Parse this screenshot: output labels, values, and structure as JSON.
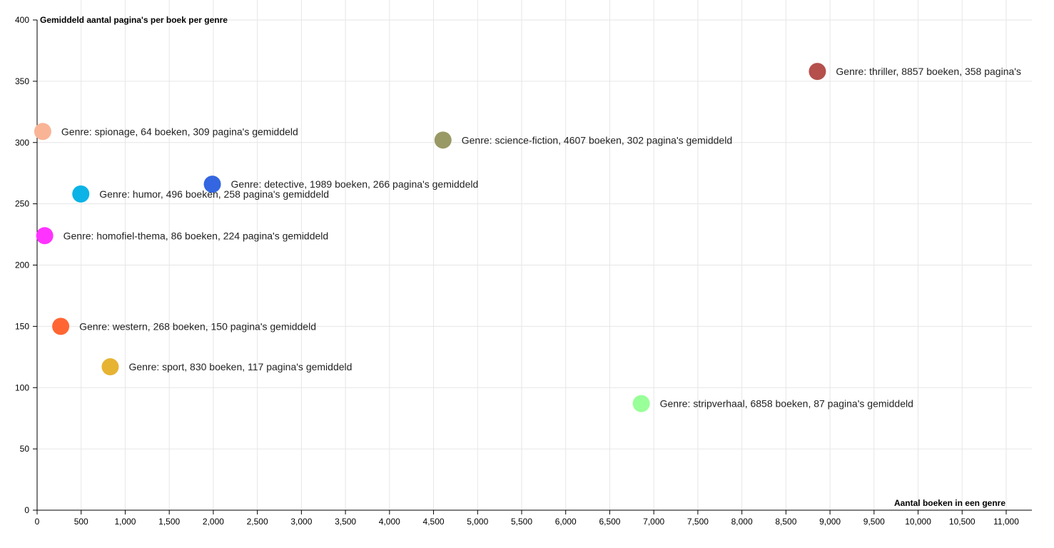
{
  "chart_data": {
    "type": "scatter",
    "xlabel": "Aantal boeken in een genre",
    "ylabel": "Gemiddeld aantal pagina's per boek per genre",
    "xlim": [
      0,
      11300
    ],
    "ylim": [
      0,
      400
    ],
    "x_ticks": [
      0,
      500,
      1000,
      1500,
      2000,
      2500,
      3000,
      3500,
      4000,
      4500,
      5000,
      5500,
      6000,
      6500,
      7000,
      7500,
      8000,
      8500,
      9000,
      9500,
      10000,
      10500,
      11000
    ],
    "x_tick_labels": [
      "0",
      "500",
      "1,000",
      "1,500",
      "2,000",
      "2,500",
      "3,000",
      "3,500",
      "4,000",
      "4,500",
      "5,000",
      "5,500",
      "6,000",
      "6,500",
      "7,000",
      "7,500",
      "8,000",
      "8,500",
      "9,000",
      "9,500",
      "10,000",
      "10,500",
      "11,000"
    ],
    "y_ticks": [
      0,
      50,
      100,
      150,
      200,
      250,
      300,
      350,
      400
    ],
    "y_tick_labels": [
      "0",
      "50",
      "100",
      "150",
      "200",
      "250",
      "300",
      "350",
      "400"
    ],
    "grid": true,
    "points": [
      {
        "x": 8857,
        "y": 358,
        "color": "#b5504c",
        "label": "Genre: thriller, 8857 boeken, 358 pagina's"
      },
      {
        "x": 64,
        "y": 309,
        "color": "#f9b496",
        "label": "Genre: spionage, 64 boeken, 309 pagina's gemiddeld"
      },
      {
        "x": 4607,
        "y": 302,
        "color": "#999966",
        "label": "Genre: science-fiction, 4607 boeken, 302 pagina's gemiddeld"
      },
      {
        "x": 1989,
        "y": 266,
        "color": "#3366e0",
        "label": "Genre: detective, 1989 boeken, 266 pagina's gemiddeld"
      },
      {
        "x": 496,
        "y": 258,
        "color": "#0bb3e6",
        "label": "Genre: humor, 496 boeken, 258 pagina's gemiddeld"
      },
      {
        "x": 86,
        "y": 224,
        "color": "#ff33ff",
        "label": "Genre: homofiel-thema, 86 boeken, 224 pagina's gemiddeld"
      },
      {
        "x": 268,
        "y": 150,
        "color": "#ff6633",
        "label": "Genre: western, 268 boeken, 150 pagina's gemiddeld"
      },
      {
        "x": 830,
        "y": 117,
        "color": "#e6b333",
        "label": "Genre: sport, 830 boeken, 117 pagina's gemiddeld"
      },
      {
        "x": 6858,
        "y": 87,
        "color": "#99ff99",
        "label": "Genre: stripverhaal, 6858 boeken, 87 pagina's gemiddeld"
      }
    ]
  }
}
